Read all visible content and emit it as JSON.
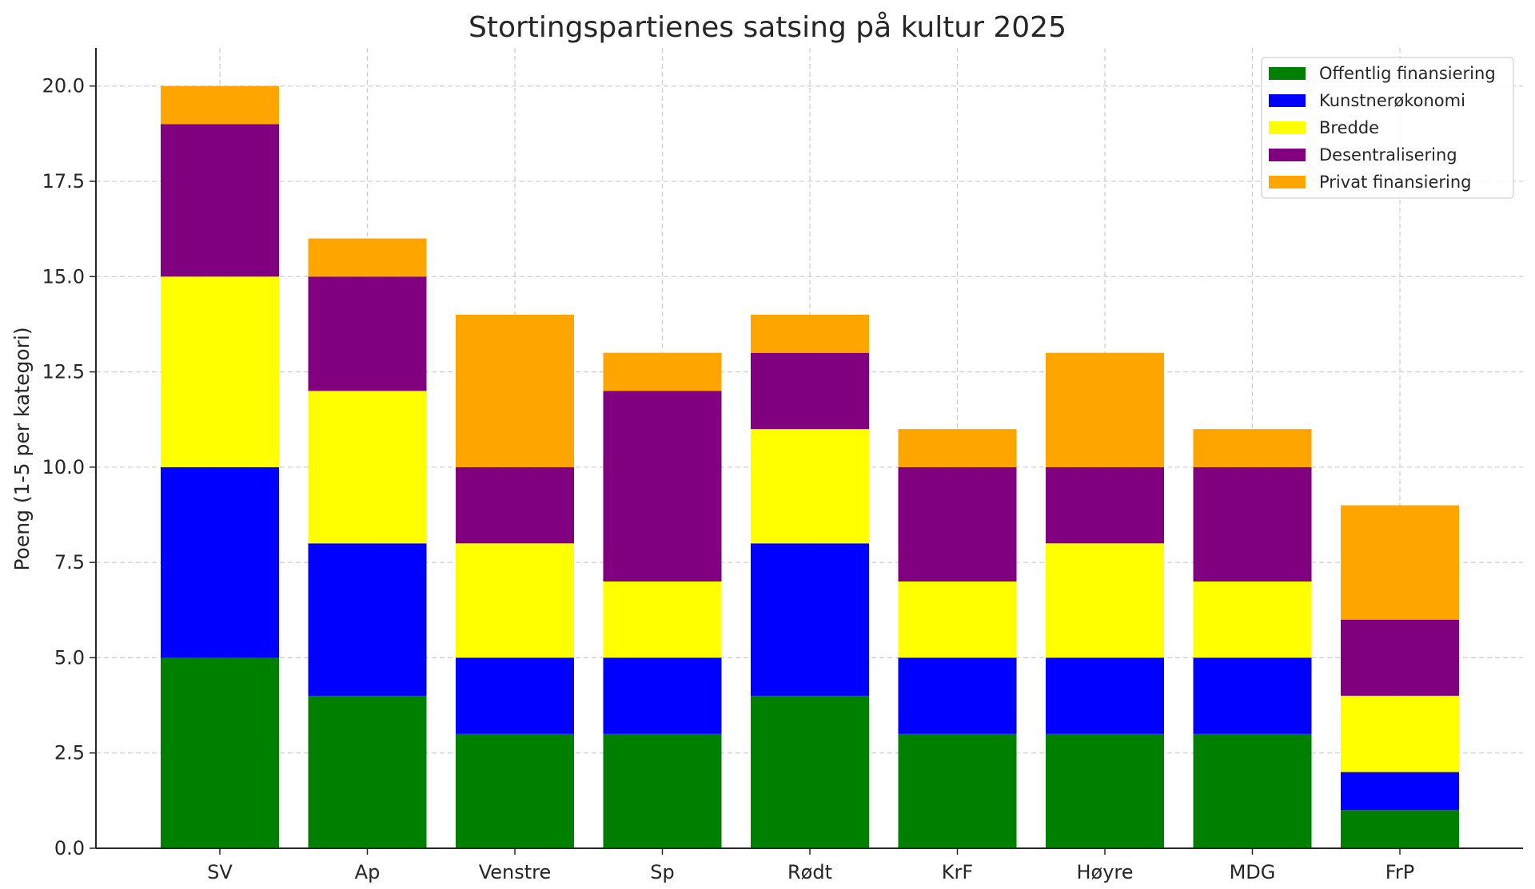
{
  "chart_data": {
    "type": "bar",
    "stacked": true,
    "title": "Stortingspartienes satsing på kultur 2025",
    "xlabel": "",
    "ylabel": "Poeng (1-5 per kategori)",
    "ylim": [
      0,
      21
    ],
    "yticks": [
      0,
      2.5,
      5,
      7.5,
      10,
      12.5,
      15,
      17.5,
      20
    ],
    "ytick_labels": [
      "0.0",
      "2.5",
      "5.0",
      "7.5",
      "10.0",
      "12.5",
      "15.0",
      "17.5",
      "20.0"
    ],
    "grid": true,
    "legend_position": "top-right",
    "categories": [
      "SV",
      "Ap",
      "Venstre",
      "Sp",
      "Rødt",
      "KrF",
      "Høyre",
      "MDG",
      "FrP"
    ],
    "series": [
      {
        "name": "Offentlig finansiering",
        "color": "#008000",
        "values": [
          5,
          4,
          3,
          3,
          4,
          3,
          3,
          3,
          1
        ]
      },
      {
        "name": "Kunstnerøkonomi",
        "color": "#0000ff",
        "values": [
          5,
          4,
          2,
          2,
          4,
          2,
          2,
          2,
          1
        ]
      },
      {
        "name": "Bredde",
        "color": "#ffff00",
        "values": [
          5,
          4,
          3,
          2,
          3,
          2,
          3,
          2,
          2
        ]
      },
      {
        "name": "Desentralisering",
        "color": "#800080",
        "values": [
          4,
          3,
          2,
          5,
          2,
          3,
          2,
          3,
          2
        ]
      },
      {
        "name": "Privat finansiering",
        "color": "#ffa500",
        "values": [
          1,
          1,
          4,
          1,
          1,
          1,
          3,
          1,
          3
        ]
      }
    ]
  }
}
